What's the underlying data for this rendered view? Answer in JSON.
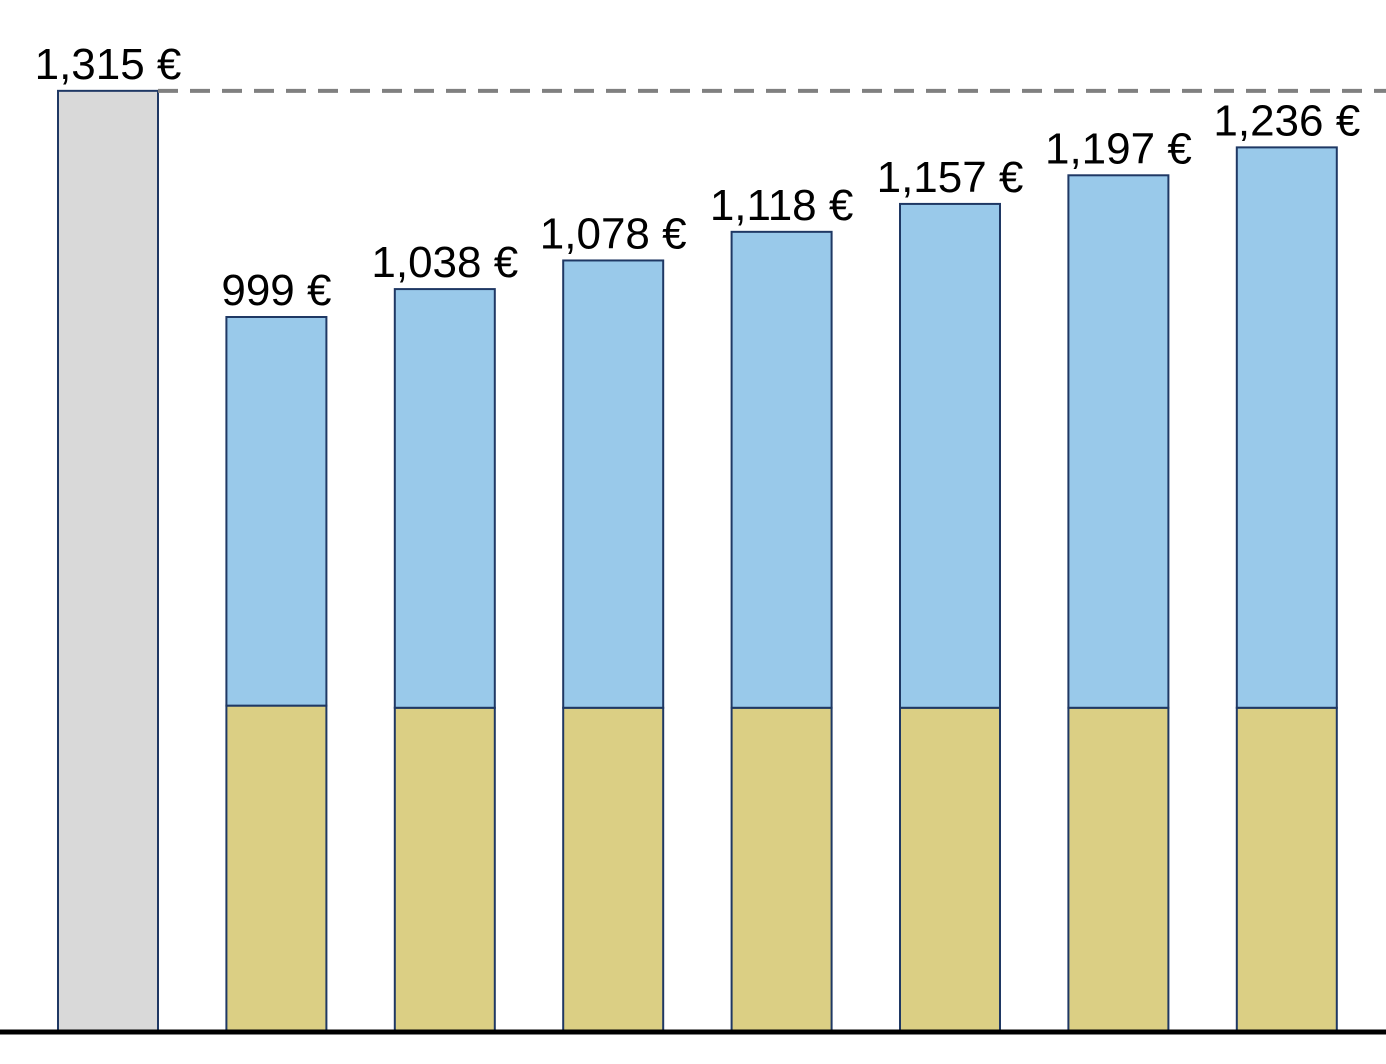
{
  "chart_data": {
    "type": "bar",
    "stacked": true,
    "categories": [
      null,
      null,
      null,
      null,
      null,
      null,
      null,
      null
    ],
    "series": [
      {
        "color": "#d9d9d9",
        "values": [
          1315,
          null,
          null,
          null,
          null,
          null,
          null,
          null
        ]
      },
      {
        "color": "#dbcf84",
        "values": [
          null,
          456,
          453,
          453,
          453,
          453,
          453,
          453
        ]
      },
      {
        "color": "#99c9ea",
        "values": [
          null,
          543,
          585,
          625,
          665,
          704,
          744,
          783
        ]
      }
    ],
    "totals": {
      "values": [
        1315,
        999,
        1038,
        1078,
        1118,
        1157,
        1197,
        1236
      ],
      "value_labels": [
        "1,315 €",
        "999 €",
        "1,038 €",
        "1,078 €",
        "1,118 €",
        "1,157 €",
        "1,197 €",
        "1,236 €"
      ]
    },
    "reference_line": true,
    "ylim": [
      0,
      1400
    ]
  }
}
